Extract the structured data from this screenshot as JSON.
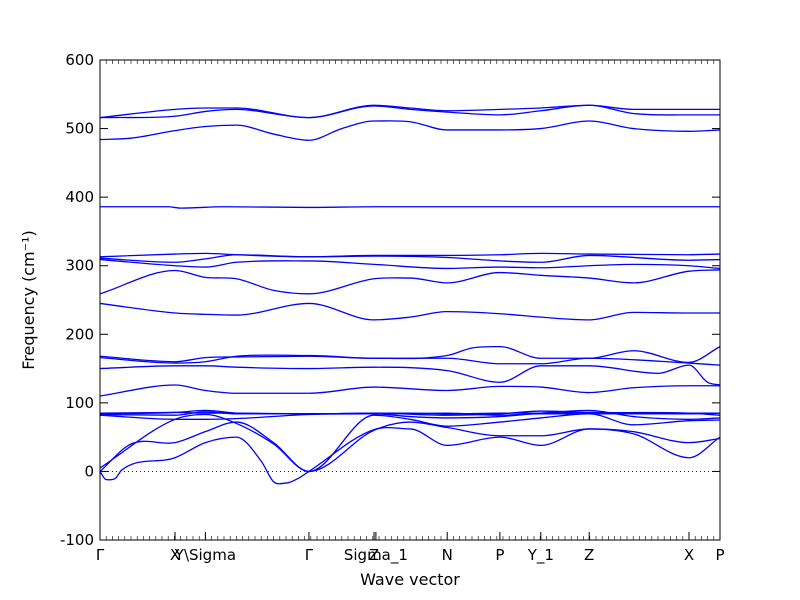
{
  "chart_data": {
    "type": "line",
    "title": "",
    "xlabel": "Wave vector",
    "ylabel": "Frequency (cm⁻¹)",
    "ylim": [
      -100,
      600
    ],
    "yticks": [
      -100,
      0,
      100,
      200,
      300,
      400,
      500,
      600
    ],
    "xlim": [
      0,
      1
    ],
    "grid": false,
    "legend": "none",
    "line_color": "#0000ff",
    "zero_reference_line": "dotted",
    "high_symmetry_points": [
      {
        "label": "Γ",
        "x": 0.0
      },
      {
        "label": "X",
        "x": 0.121
      },
      {
        "label": "Y\\Sigma",
        "x": 0.17
      },
      {
        "label": "Γ",
        "x": 0.337
      },
      {
        "label": "Z",
        "x": 0.442
      },
      {
        "label": "Sigma_1",
        "x": 0.445
      },
      {
        "label": "N",
        "x": 0.56
      },
      {
        "label": "P",
        "x": 0.645
      },
      {
        "label": "Y_1",
        "x": 0.711
      },
      {
        "label": "Z",
        "x": 0.789
      },
      {
        "label": "X",
        "x": 0.95
      },
      {
        "label": "P",
        "x": 1.0
      }
    ],
    "series": [
      {
        "x": [
          0,
          0.121,
          0.17,
          0.22,
          0.337,
          0.442,
          0.5,
          0.56,
          0.645,
          0.711,
          0.789,
          0.86,
          0.95,
          1.0
        ],
        "values": [
          516,
          528,
          530,
          530,
          516,
          534,
          530,
          526,
          528,
          530,
          534,
          528,
          528,
          528
        ]
      },
      {
        "x": [
          0,
          0.121,
          0.17,
          0.22,
          0.337,
          0.442,
          0.5,
          0.56,
          0.645,
          0.711,
          0.789,
          0.86,
          0.95,
          1.0
        ],
        "values": [
          516,
          518,
          525,
          528,
          516,
          533,
          528,
          524,
          520,
          526,
          534,
          522,
          520,
          520
        ]
      },
      {
        "x": [
          0,
          0.05,
          0.121,
          0.17,
          0.22,
          0.28,
          0.337,
          0.39,
          0.442,
          0.5,
          0.56,
          0.645,
          0.711,
          0.789,
          0.86,
          0.95,
          1.0
        ],
        "values": [
          484,
          486,
          497,
          503,
          505,
          492,
          483,
          500,
          511,
          510,
          498,
          498,
          500,
          511,
          500,
          496,
          498
        ]
      },
      {
        "x": [
          0,
          0.11,
          0.13,
          0.2,
          0.337,
          0.442,
          0.56,
          0.645,
          0.711,
          0.789,
          0.95,
          1.0
        ],
        "values": [
          386,
          386,
          384,
          386,
          385,
          386,
          386,
          386,
          386,
          386,
          386,
          386
        ]
      },
      {
        "x": [
          0,
          0.121,
          0.17,
          0.22,
          0.337,
          0.442,
          0.56,
          0.645,
          0.711,
          0.789,
          0.95,
          1.0
        ],
        "values": [
          313,
          317,
          318,
          316,
          313,
          315,
          315,
          316,
          318,
          317,
          316,
          317
        ]
      },
      {
        "x": [
          0,
          0.121,
          0.17,
          0.22,
          0.337,
          0.442,
          0.56,
          0.645,
          0.711,
          0.789,
          0.95,
          1.0
        ],
        "values": [
          311,
          305,
          310,
          316,
          313,
          314,
          312,
          307,
          305,
          315,
          308,
          309
        ]
      },
      {
        "x": [
          0,
          0.121,
          0.17,
          0.22,
          0.337,
          0.442,
          0.56,
          0.645,
          0.711,
          0.789,
          0.86,
          0.95,
          1.0
        ],
        "values": [
          309,
          300,
          298,
          305,
          307,
          302,
          296,
          298,
          297,
          300,
          302,
          300,
          296
        ]
      },
      {
        "x": [
          0,
          0.121,
          0.17,
          0.22,
          0.28,
          0.337,
          0.442,
          0.5,
          0.56,
          0.645,
          0.711,
          0.789,
          0.86,
          0.95,
          1.0
        ],
        "values": [
          259,
          293,
          283,
          281,
          264,
          259,
          281,
          282,
          275,
          290,
          286,
          282,
          275,
          292,
          294
        ]
      },
      {
        "x": [
          0,
          0.121,
          0.17,
          0.22,
          0.337,
          0.442,
          0.5,
          0.56,
          0.645,
          0.711,
          0.789,
          0.86,
          0.95,
          1.0
        ],
        "values": [
          245,
          231,
          229,
          228,
          245,
          221,
          225,
          233,
          230,
          225,
          221,
          232,
          231,
          231
        ]
      },
      {
        "x": [
          0,
          0.121,
          0.17,
          0.22,
          0.337,
          0.442,
          0.56,
          0.6,
          0.645,
          0.711,
          0.789,
          0.86,
          0.95,
          1.0
        ],
        "values": [
          168,
          160,
          166,
          167,
          168,
          165,
          169,
          180,
          182,
          165,
          165,
          176,
          159,
          182
        ]
      },
      {
        "x": [
          0,
          0.121,
          0.17,
          0.22,
          0.337,
          0.442,
          0.56,
          0.645,
          0.711,
          0.789,
          0.95,
          1.0
        ],
        "values": [
          166,
          158,
          160,
          168,
          169,
          165,
          165,
          157,
          157,
          165,
          158,
          155
        ]
      },
      {
        "x": [
          0,
          0.121,
          0.17,
          0.22,
          0.337,
          0.442,
          0.56,
          0.645,
          0.711,
          0.789,
          0.9,
          0.95,
          0.98,
          1.0
        ],
        "values": [
          150,
          154,
          154,
          152,
          150,
          152,
          147,
          130,
          154,
          154,
          143,
          155,
          130,
          126
        ]
      },
      {
        "x": [
          0,
          0.121,
          0.17,
          0.22,
          0.337,
          0.442,
          0.56,
          0.645,
          0.711,
          0.789,
          0.86,
          0.95,
          1.0
        ],
        "values": [
          110,
          126,
          118,
          114,
          114,
          123,
          118,
          124,
          123,
          115,
          122,
          125,
          125
        ]
      },
      {
        "x": [
          0,
          0.121,
          0.17,
          0.22,
          0.337,
          0.442,
          0.56,
          0.645,
          0.711,
          0.789,
          0.95,
          1.0
        ],
        "values": [
          84,
          86,
          89,
          85,
          84,
          85,
          82,
          84,
          88,
          86,
          85,
          82
        ]
      },
      {
        "x": [
          0,
          0.121,
          0.17,
          0.22,
          0.337,
          0.442,
          0.56,
          0.645,
          0.711,
          0.789,
          0.95,
          1.0
        ],
        "values": [
          83,
          82,
          87,
          84,
          84,
          84,
          85,
          82,
          84,
          84,
          84,
          85
        ]
      },
      {
        "x": [
          0,
          0.121,
          0.17,
          0.22,
          0.337,
          0.442,
          0.5,
          0.56,
          0.645,
          0.711,
          0.789,
          0.86,
          0.95,
          1.0
        ],
        "values": [
          82,
          76,
          76,
          77,
          83,
          84,
          80,
          78,
          80,
          85,
          89,
          80,
          76,
          78
        ]
      },
      {
        "x": [
          0,
          0.121,
          0.17,
          0.22,
          0.28,
          0.337,
          0.442,
          0.5,
          0.56,
          0.645,
          0.711,
          0.789,
          0.86,
          0.95,
          1.0
        ],
        "values": [
          5,
          76,
          83,
          70,
          40,
          0,
          82,
          76,
          66,
          72,
          78,
          84,
          68,
          74,
          75
        ]
      },
      {
        "x": [
          0,
          0.05,
          0.121,
          0.17,
          0.22,
          0.28,
          0.337,
          0.442,
          0.5,
          0.56,
          0.645,
          0.711,
          0.789,
          0.86,
          0.95,
          1.0
        ],
        "values": [
          0,
          40,
          42,
          58,
          72,
          42,
          0,
          60,
          72,
          64,
          52,
          52,
          62,
          58,
          42,
          48
        ]
      },
      {
        "x": [
          0,
          0.01,
          0.025,
          0.035,
          0.121,
          0.17,
          0.22,
          0.26,
          0.28,
          0.3,
          0.32,
          0.337,
          0.442,
          0.5,
          0.56,
          0.645,
          0.711,
          0.789,
          0.86,
          0.95,
          1.0
        ],
        "values": [
          0,
          -12,
          -10,
          2,
          20,
          42,
          50,
          15,
          -15,
          -17,
          -10,
          0,
          61,
          62,
          38,
          50,
          38,
          62,
          55,
          20,
          50
        ]
      },
      {
        "x": [
          0,
          0.121,
          0.17,
          0.22,
          0.337,
          0.442,
          0.5,
          0.56,
          0.645,
          0.711,
          0.789,
          0.86,
          0.95,
          1.0
        ],
        "values": [
          85,
          86,
          85,
          85,
          84,
          85,
          85,
          84,
          85,
          85,
          86,
          85,
          85,
          85
        ]
      }
    ]
  }
}
